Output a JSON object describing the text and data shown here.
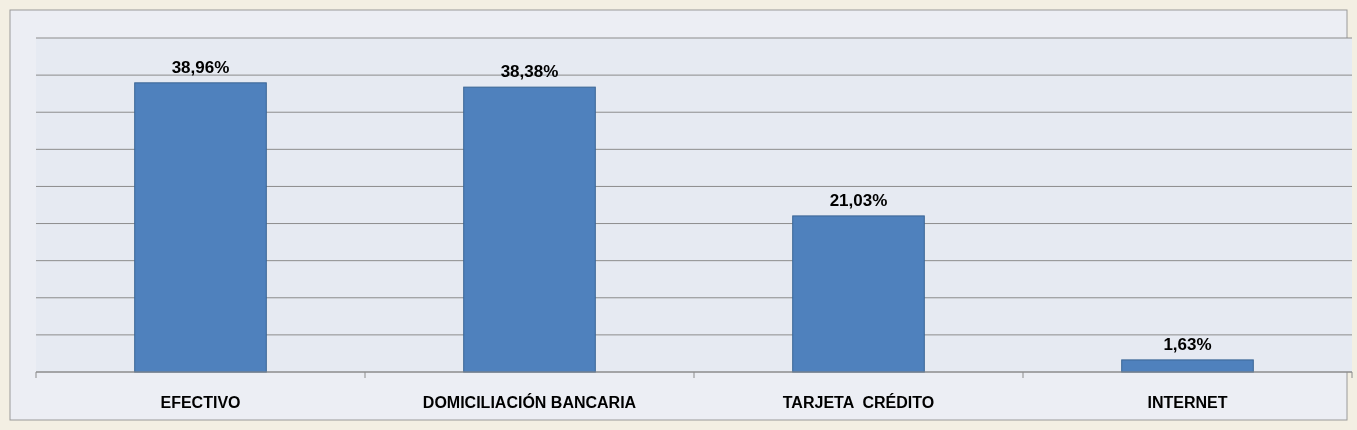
{
  "chart_data": {
    "type": "bar",
    "categories": [
      "EFECTIVO",
      "DOMICILIACIÓN BANCARIA",
      "TARJETA  CRÉDITO",
      "INTERNET"
    ],
    "values": [
      38.96,
      38.38,
      21.03,
      1.63
    ],
    "value_labels": [
      "38,96%",
      "38,38%",
      "21,03%",
      "1,63%"
    ],
    "color": "#4f81bd",
    "ylim": [
      0,
      45
    ],
    "yticks": [
      {
        "value": 0,
        "label": null
      },
      {
        "value": 5,
        "label": null
      },
      {
        "value": 10,
        "label": null
      },
      {
        "value": 15,
        "label": null
      },
      {
        "value": 20,
        "label": null
      },
      {
        "value": 25,
        "label": null
      },
      {
        "value": 30,
        "label": null
      },
      {
        "value": 35,
        "label": null
      },
      {
        "value": 40,
        "label": null
      },
      {
        "value": 45,
        "label": null
      }
    ],
    "grid": true,
    "tick_labels": "x"
  }
}
